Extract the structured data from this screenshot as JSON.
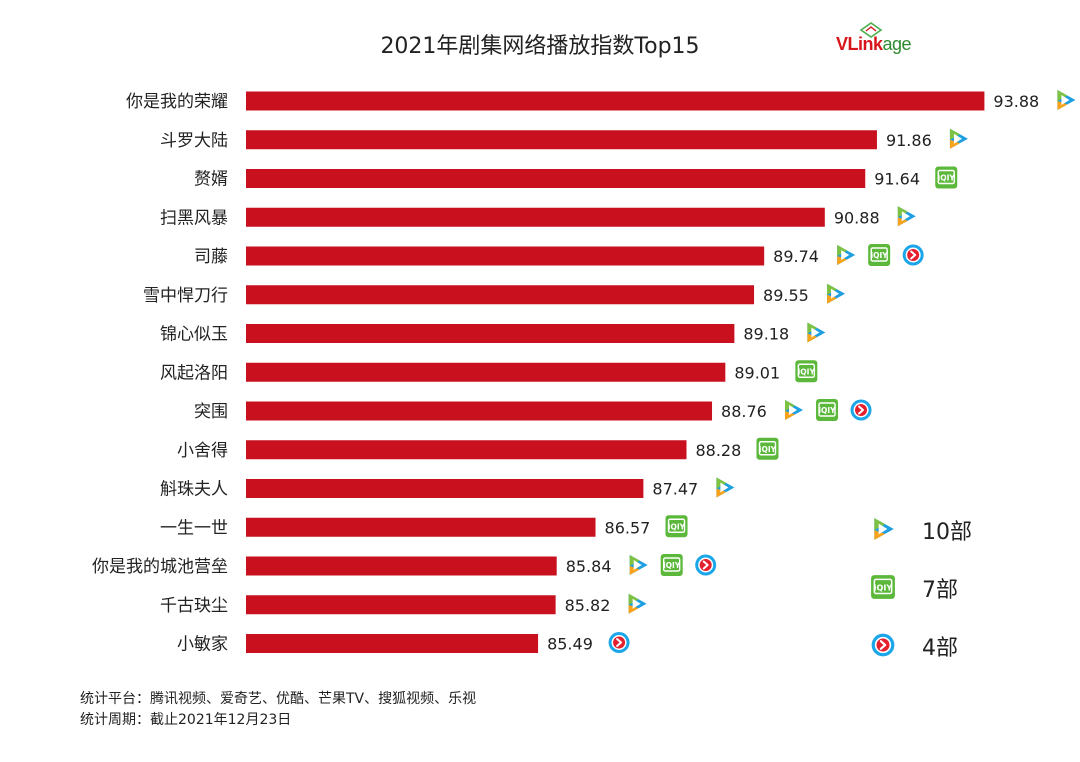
{
  "chart_data": {
    "type": "bar",
    "orientation": "horizontal",
    "title": "2021年剧集网络播放指数Top15",
    "xlabel": "",
    "ylabel": "",
    "grid": false,
    "legend_position": "right",
    "bar_color": "#c8101e",
    "xlim": [
      80,
      95
    ],
    "categories": [
      "你是我的荣耀",
      "斗罗大陆",
      "赘婿",
      "扫黑风暴",
      "司藤",
      "雪中悍刀行",
      "锦心似玉",
      "风起洛阳",
      "突围",
      "小舍得",
      "斛珠夫人",
      "一生一世",
      "你是我的城池营垒",
      "千古玦尘",
      "小敏家"
    ],
    "values": [
      93.88,
      91.86,
      91.64,
      90.88,
      89.74,
      89.55,
      89.18,
      89.01,
      88.76,
      88.28,
      87.47,
      86.57,
      85.84,
      85.82,
      85.49
    ],
    "value_labels": [
      "93.88",
      "91.86",
      "91.64",
      "90.88",
      "89.74",
      "89.55",
      "89.18",
      "89.01",
      "88.76",
      "88.28",
      "87.47",
      "86.57",
      "85.84",
      "85.82",
      "85.49"
    ],
    "platforms": [
      [
        "tencent-video-icon"
      ],
      [
        "tencent-video-icon"
      ],
      [
        "iqiyi-icon"
      ],
      [
        "tencent-video-icon"
      ],
      [
        "tencent-video-icon",
        "iqiyi-icon",
        "youku-icon"
      ],
      [
        "tencent-video-icon"
      ],
      [
        "tencent-video-icon"
      ],
      [
        "iqiyi-icon"
      ],
      [
        "tencent-video-icon",
        "iqiyi-icon",
        "youku-icon"
      ],
      [
        "iqiyi-icon"
      ],
      [
        "tencent-video-icon"
      ],
      [
        "iqiyi-icon"
      ],
      [
        "tencent-video-icon",
        "iqiyi-icon",
        "youku-icon"
      ],
      [
        "tencent-video-icon"
      ],
      [
        "youku-icon"
      ]
    ],
    "legend": [
      {
        "icon": "tencent-video-icon",
        "label": "10部"
      },
      {
        "icon": "iqiyi-icon",
        "label": "7部"
      },
      {
        "icon": "youku-icon",
        "label": "4部"
      }
    ]
  },
  "brand": {
    "logo_v": "V",
    "logo_link": "Link",
    "logo_age": "age"
  },
  "footer": {
    "platforms_line": "统计平台：腾讯视频、爱奇艺、优酷、芒果TV、搜狐视频、乐视",
    "period_line": "统计周期：截止2021年12月23日"
  },
  "colors": {
    "bar": "#c8101e",
    "tencent_blue": "#1e9fe0",
    "tencent_green": "#7dc242",
    "tencent_orange": "#f7a31c",
    "iqiyi_green": "#5bb83a",
    "youku_red": "#e5202e",
    "youku_blue": "#1aa6e8"
  }
}
